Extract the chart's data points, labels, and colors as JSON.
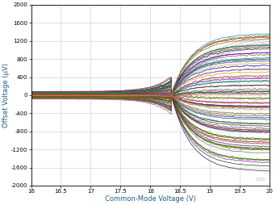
{
  "xlabel": "Common-Mode Voltage (V)",
  "ylabel": "Offset Voltage (µV)",
  "xlim": [
    16,
    20
  ],
  "ylim": [
    -2000,
    2000
  ],
  "xticks": [
    16,
    16.5,
    17,
    17.5,
    18,
    18.5,
    19,
    19.5,
    20
  ],
  "yticks": [
    -2000,
    -1600,
    -1200,
    -800,
    -400,
    0,
    400,
    800,
    1200,
    1600,
    2000
  ],
  "background_color": "#ffffff",
  "grid_color": "#c8c8c8",
  "transition_x": 18.35,
  "watermark": "C002",
  "num_curves": 80,
  "label_color": "#1f5c8b",
  "lw": 0.5
}
